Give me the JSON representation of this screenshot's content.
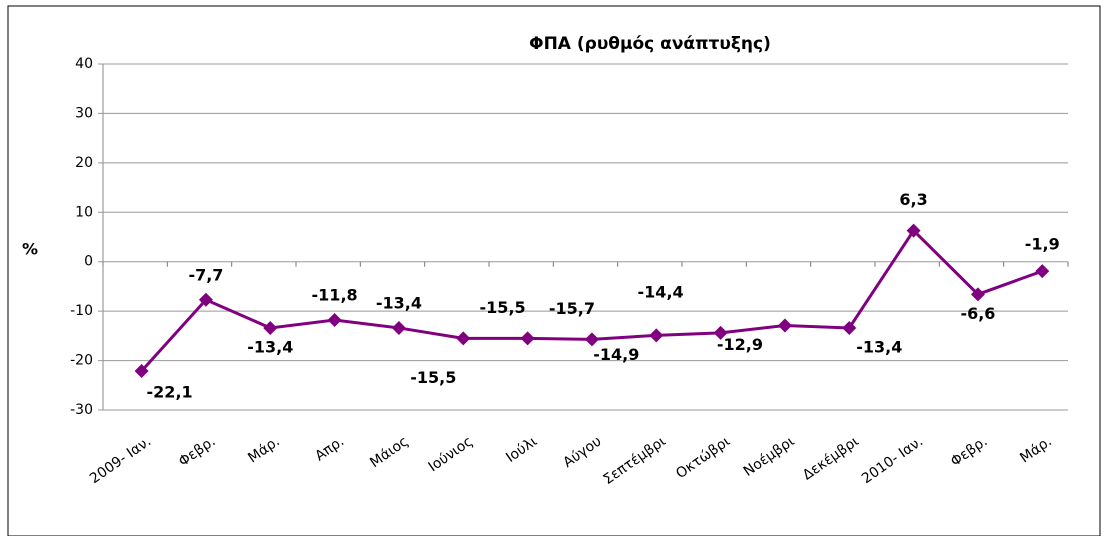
{
  "chart_data": {
    "type": "line",
    "title": "ΦΠΑ (ρυθμός ανάπτυξης)",
    "y_label": "%",
    "categories": [
      "2009- Ιαν.",
      "Φεβρ.",
      "Μάρ.",
      "Απρ.",
      "Μάιος",
      "Ιούνιος",
      "Ιούλι",
      "Αύγου",
      "Σεπτέμβρι",
      "Οκτώβρι",
      "Νοέμβρι",
      "Δεκέμβρι",
      "2010- Ιαν.",
      "Φεβρ.",
      "Μάρ."
    ],
    "series": [
      {
        "name": "ΦΠΑ",
        "color": "#800080",
        "values": [
          -22.1,
          -7.7,
          -13.4,
          -11.8,
          -13.4,
          -15.5,
          -15.5,
          -15.7,
          -14.9,
          -14.4,
          -12.9,
          -13.4,
          6.3,
          -6.6,
          -1.9
        ],
        "value_labels": [
          "-22,1",
          "-7,7",
          "-13,4",
          "-11,8",
          "-13,4",
          "-15,5",
          "-15,5",
          "-15,7",
          "-14,9",
          "-14,4",
          "-12,9",
          "-13,4",
          "6,3",
          "-6,6",
          "-1,9"
        ]
      }
    ],
    "ylim": [
      -30,
      40
    ],
    "yticks": [
      -30,
      -20,
      -10,
      0,
      10,
      20,
      30,
      40
    ],
    "grid": true
  }
}
